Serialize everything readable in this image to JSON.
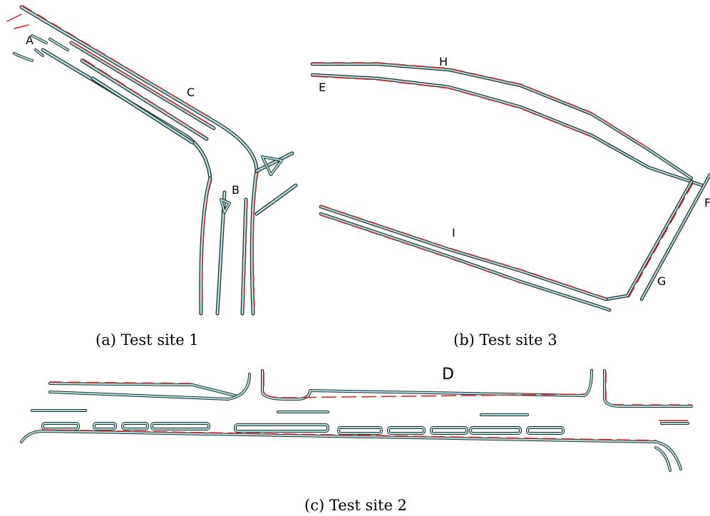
{
  "panels": [
    {
      "id": "a",
      "caption": "(a) Test site 1",
      "labels": [
        "A",
        "B",
        "C"
      ]
    },
    {
      "id": "b",
      "caption": "(b) Test site 3",
      "labels": [
        "E",
        "F",
        "G",
        "H",
        "I"
      ]
    },
    {
      "id": "c",
      "caption": "(c) Test site 2",
      "labels": [
        "D"
      ]
    }
  ],
  "colors": {
    "mapped_lane": "#a8e4e4",
    "outline": "#2a2a2a",
    "detected": "#d61e1e"
  }
}
